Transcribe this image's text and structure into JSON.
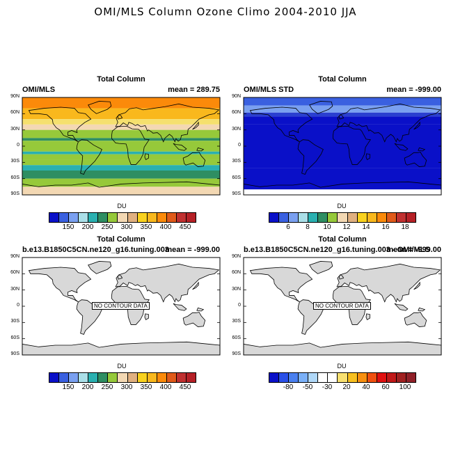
{
  "figure": {
    "title": "OMI/MLS Column Ozone Climo 2004-2010 JJA"
  },
  "lat_labels": [
    "90N",
    "60N",
    "30N",
    "0",
    "30S",
    "60S",
    "90S"
  ],
  "panels": [
    {
      "id": "p1",
      "title": "Total Column",
      "left_string": "OMI/MLS",
      "right_string": "mean = 289.75",
      "units": "DU",
      "has_data": true,
      "no_data_label": "",
      "zonal_colors": [
        "#fb8a0a",
        "#f9b81d",
        "#f5e06e",
        "#f3d8b3",
        "#96c93a",
        "#2e8e62",
        "#96c93a",
        "#2ab0b0",
        "#96c93a",
        "#96c93a",
        "#2ab0b0",
        "#2e8e62",
        "#96c93a",
        "#f3d8b3"
      ],
      "zonal_lat_edges": [
        90,
        70,
        50,
        40,
        30,
        15,
        10,
        -10,
        -15,
        -25,
        -35,
        -45,
        -60,
        -75,
        -90
      ],
      "labelbar": {
        "colors": [
          "#0a10c8",
          "#3a60e0",
          "#7aa0f0",
          "#aadfe8",
          "#2ab0b0",
          "#2e8e62",
          "#96c93a",
          "#f3d8b3",
          "#e0b080",
          "#f9d21e",
          "#f9b81d",
          "#fb8a0a",
          "#e05a1a",
          "#c03030",
          "#b52026"
        ],
        "labels": [
          "150",
          "200",
          "250",
          "300",
          "350",
          "400",
          "450"
        ]
      }
    },
    {
      "id": "p2",
      "title": "Total Column",
      "left_string": "OMI/MLS STD",
      "right_string": "mean = -999.00",
      "units": "DU",
      "has_data": true,
      "no_data_label": "",
      "zonal_colors": [
        "#3a60e0",
        "#7aa0f0",
        "#2a3fd0",
        "#0a10c8",
        "#0a10c8",
        "#0a10c8",
        "#0a10c8",
        "#ffffff"
      ],
      "zonal_lat_edges": [
        90,
        75,
        62,
        55,
        40,
        0,
        -40,
        -80,
        -90
      ],
      "labelbar": {
        "colors": [
          "#0a10c8",
          "#3a60e0",
          "#7aa0f0",
          "#aadfe8",
          "#2ab0b0",
          "#2e8e62",
          "#96c93a",
          "#f3d8b3",
          "#e0b080",
          "#f9d21e",
          "#f9b81d",
          "#fb8a0a",
          "#e05a1a",
          "#c03030",
          "#b52026"
        ],
        "labels": [
          "6",
          "8",
          "10",
          "12",
          "14",
          "16",
          "18"
        ]
      }
    },
    {
      "id": "p3",
      "title": "Total Column",
      "left_string": "b.e13.B1850C5CN.ne120_g16.tuning.003",
      "right_string": "mean = -999.00",
      "units": "DU",
      "has_data": false,
      "no_data_label": "NO CONTOUR DATA",
      "zonal_colors": [],
      "zonal_lat_edges": [],
      "labelbar": {
        "colors": [
          "#0a10c8",
          "#3a60e0",
          "#7aa0f0",
          "#aadfe8",
          "#2ab0b0",
          "#2e8e62",
          "#96c93a",
          "#f3d8b3",
          "#e0b080",
          "#f9d21e",
          "#f9b81d",
          "#fb8a0a",
          "#e05a1a",
          "#c03030",
          "#b52026"
        ],
        "labels": [
          "150",
          "200",
          "250",
          "300",
          "350",
          "400",
          "450"
        ]
      }
    },
    {
      "id": "p4",
      "title": "Total Column",
      "left_string": "b.e13.B1850C5CN.ne120_g16.tuning.003 - OMI/MLS",
      "right_string": "mean = -999.00",
      "units": "DU",
      "has_data": false,
      "no_data_label": "NO CONTOUR DATA",
      "zonal_colors": [],
      "zonal_lat_edges": [],
      "labelbar": {
        "colors": [
          "#0a10c8",
          "#2a50e8",
          "#4a80f0",
          "#7ab0f8",
          "#b0d8f8",
          "#ffffff",
          "#ffffff",
          "#f8e070",
          "#f8c020",
          "#f89010",
          "#f05010",
          "#e01010",
          "#c01818",
          "#a02020",
          "#902028"
        ],
        "labels": [
          "-80",
          "-50",
          "-30",
          "20",
          "40",
          "60",
          "100"
        ]
      }
    }
  ]
}
